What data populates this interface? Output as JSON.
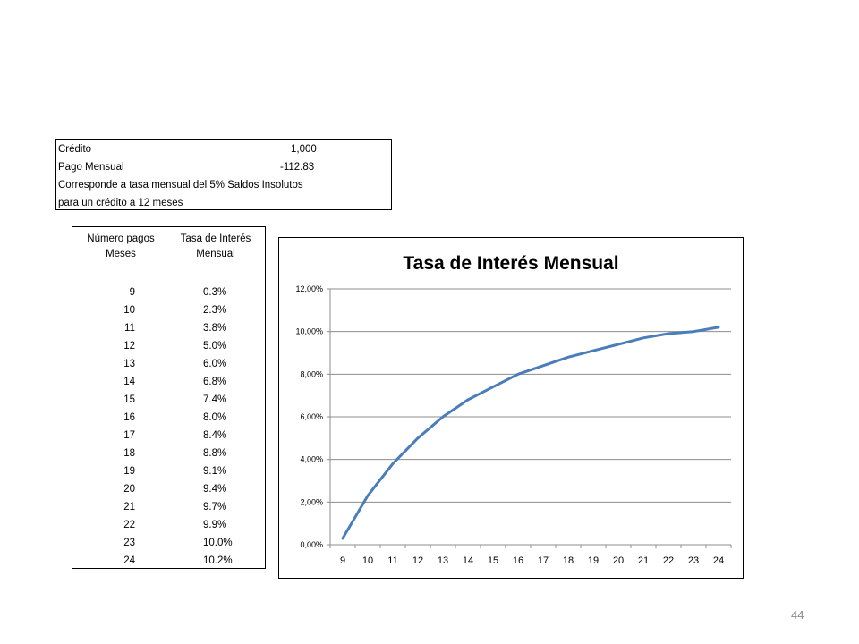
{
  "info": {
    "credit_label": "Crédito",
    "credit_value": "1,000",
    "payment_label": "Pago Mensual",
    "payment_value": "-112.83",
    "note_line1": "Corresponde a tasa mensual del 5% Saldos Insolutos",
    "note_line2": "para un crédito a 12 meses"
  },
  "table": {
    "header_col1": "Número pagos Meses",
    "header_col2": "Tasa de Interés Mensual",
    "rows": [
      {
        "n": "9",
        "rate": "0.3%"
      },
      {
        "n": "10",
        "rate": "2.3%"
      },
      {
        "n": "11",
        "rate": "3.8%"
      },
      {
        "n": "12",
        "rate": "5.0%"
      },
      {
        "n": "13",
        "rate": "6.0%"
      },
      {
        "n": "14",
        "rate": "6.8%"
      },
      {
        "n": "15",
        "rate": "7.4%"
      },
      {
        "n": "16",
        "rate": "8.0%"
      },
      {
        "n": "17",
        "rate": "8.4%"
      },
      {
        "n": "18",
        "rate": "8.8%"
      },
      {
        "n": "19",
        "rate": "9.1%"
      },
      {
        "n": "20",
        "rate": "9.4%"
      },
      {
        "n": "21",
        "rate": "9.7%"
      },
      {
        "n": "22",
        "rate": "9.9%"
      },
      {
        "n": "23",
        "rate": "10.0%"
      },
      {
        "n": "24",
        "rate": "10.2%"
      }
    ]
  },
  "chart_data": {
    "type": "line",
    "title": "Tasa de Interés Mensual",
    "xlabel": "",
    "ylabel": "",
    "categories": [
      "9",
      "10",
      "11",
      "12",
      "13",
      "14",
      "15",
      "16",
      "17",
      "18",
      "19",
      "20",
      "21",
      "22",
      "23",
      "24"
    ],
    "series": [
      {
        "values": [
          0.3,
          2.3,
          3.8,
          5.0,
          6.0,
          6.8,
          7.4,
          8.0,
          8.4,
          8.8,
          9.1,
          9.4,
          9.7,
          9.9,
          10.0,
          10.2
        ]
      }
    ],
    "ylim": [
      0,
      12
    ],
    "yticks": [
      "0,00%",
      "2,00%",
      "4,00%",
      "6,00%",
      "8,00%",
      "10,00%",
      "12,00%"
    ],
    "grid": true,
    "legend": "none",
    "line_color": "#4a7ebb"
  },
  "page": {
    "number": "44"
  }
}
